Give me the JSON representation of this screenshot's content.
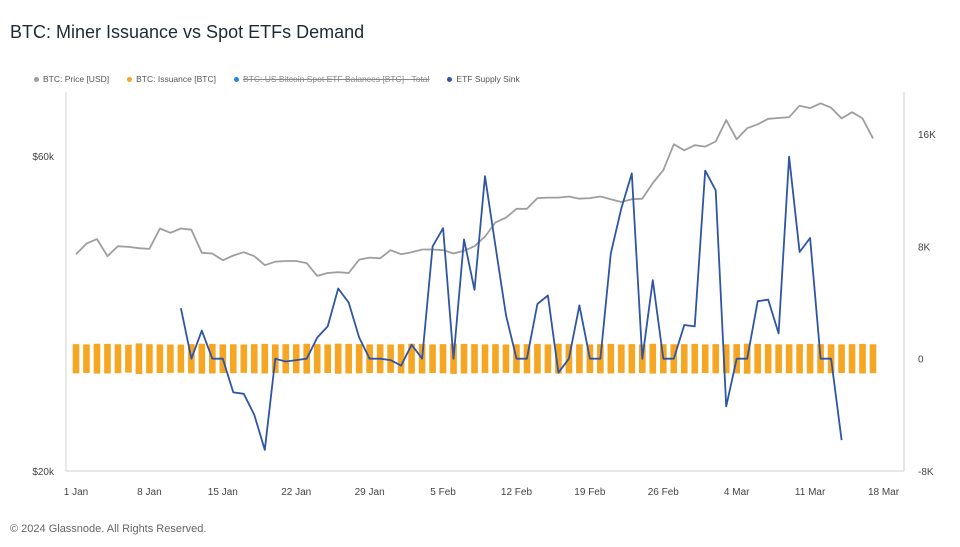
{
  "title": "BTC: Miner Issuance vs Spot ETFs Demand",
  "footer": "© 2024 Glassnode. All Rights Reserved.",
  "legend": [
    {
      "label": "BTC: Price [USD]",
      "color": "#9e9e9e",
      "hidden": false
    },
    {
      "label": "BTC: Issuance [BTC]",
      "color": "#f5a623",
      "hidden": false
    },
    {
      "label": "BTC: US Bitcoin Spot ETF Balances [BTC] - Total",
      "color": "#1e88e5",
      "hidden": true
    },
    {
      "label": "ETF Supply Sink",
      "color": "#2f55a4",
      "hidden": false
    }
  ],
  "chart_data": {
    "type": "line",
    "x_tick_labels": [
      "1 Jan",
      "8 Jan",
      "15 Jan",
      "22 Jan",
      "29 Jan",
      "5 Feb",
      "12 Feb",
      "19 Feb",
      "26 Feb",
      "4 Mar",
      "11 Mar",
      "18 Mar"
    ],
    "left_axis": {
      "ticks": [
        "$20k",
        "$60k"
      ],
      "scale": "log",
      "ylim": [
        20000,
        75000
      ]
    },
    "right_axis": {
      "ticks": [
        "-8K",
        "0",
        "8K",
        "16K"
      ],
      "ylim": [
        -8000,
        19000
      ]
    },
    "series": [
      {
        "name": "BTC: Price [USD]",
        "axis": "left",
        "color": "#9e9e9e",
        "day_start": 1,
        "values": [
          42600,
          44200,
          44900,
          42300,
          43800,
          43700,
          43500,
          43400,
          46600,
          45900,
          46600,
          46400,
          42800,
          42700,
          41700,
          42400,
          42900,
          42300,
          41000,
          41500,
          41600,
          41600,
          41300,
          39500,
          39900,
          40000,
          39900,
          41800,
          42100,
          42000,
          43200,
          42600,
          42900,
          43300,
          43300,
          43200,
          42700,
          43100,
          43800,
          45300,
          47600,
          48400,
          49900,
          49900,
          51800,
          51900,
          51900,
          52100,
          51700,
          51800,
          52100,
          51600,
          51100,
          51600,
          51700,
          54600,
          57100,
          62500,
          61200,
          62300,
          62000,
          63100,
          68000,
          63600,
          66100,
          67000,
          68300,
          68500,
          68700,
          71500,
          70900,
          72100,
          71000,
          68400,
          69900,
          68400,
          63800
        ]
      },
      {
        "name": "BTC: Issuance [BTC]",
        "axis": "right",
        "color": "#f5a623",
        "day_start": 1,
        "values": [
          900,
          880,
          920,
          910,
          890,
          850,
          950,
          900,
          880,
          870,
          860,
          900,
          920,
          910,
          880,
          890,
          870,
          900,
          910,
          880,
          900,
          890,
          920,
          900,
          880,
          930,
          910,
          900,
          880,
          890,
          870,
          900,
          920,
          910,
          880,
          900,
          940,
          910,
          900,
          880,
          900,
          870,
          890,
          900,
          910,
          880,
          920,
          900,
          890,
          880,
          900,
          910,
          870,
          900,
          880,
          920,
          900,
          890,
          900,
          910,
          880,
          900,
          890,
          900,
          930,
          910,
          900,
          880,
          890,
          900,
          910,
          900,
          890,
          880,
          900,
          910,
          890
        ]
      },
      {
        "name": "ETF Supply Sink",
        "axis": "right",
        "color": "#2f55a4",
        "day_start": 11,
        "values": [
          3600,
          0,
          2000,
          0,
          0,
          -2400,
          -2500,
          -4000,
          -6500,
          0,
          -200,
          -100,
          0,
          1500,
          2300,
          5000,
          4000,
          1500,
          0,
          0,
          -100,
          -500,
          1000,
          0,
          8000,
          9300,
          0,
          8500,
          4900,
          13000,
          8000,
          3100,
          0,
          0,
          3900,
          4500,
          -1000,
          0,
          3800,
          0,
          0,
          7500,
          10700,
          13200,
          0,
          5600,
          0,
          0,
          2400,
          2300,
          13400,
          12000,
          -3400,
          0,
          0,
          4100,
          4200,
          1800,
          14400,
          7600,
          8600,
          0,
          0,
          -5800
        ]
      }
    ]
  }
}
